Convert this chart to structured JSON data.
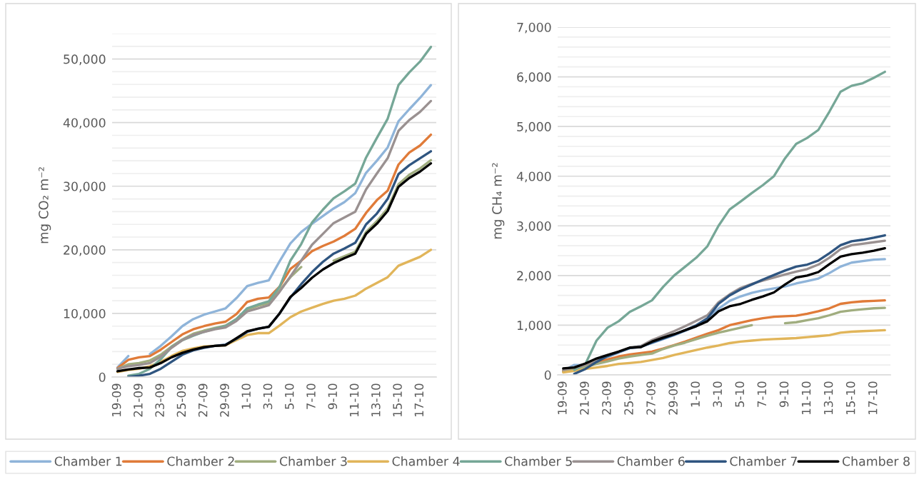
{
  "chart_data": [
    {
      "type": "line",
      "ylabel": "mg CO₂ m⁻²",
      "grid": "y",
      "legend": "bottom",
      "categories": [
        "19-09",
        null,
        "21-09",
        null,
        "23-09",
        null,
        "25-09",
        null,
        "27-09",
        null,
        "29-09",
        null,
        "1-10",
        null,
        "3-10",
        null,
        "5-10",
        null,
        "7-10",
        null,
        "9-10",
        null,
        "11-10",
        null,
        "13-10",
        null,
        "15-10",
        null,
        "17-10",
        null
      ],
      "ylim": [
        0,
        54000
      ],
      "yticks": [
        0,
        {
          "value": 2000,
          "label": null
        },
        {
          "value": 4000,
          "label": null
        },
        {
          "value": 6000,
          "label": null
        },
        {
          "value": 8000,
          "label": null
        },
        {
          "value": 10000,
          "label": "10,000"
        },
        {
          "value": 12000,
          "label": null
        },
        {
          "value": 14000,
          "label": null
        },
        {
          "value": 16000,
          "label": null
        },
        {
          "value": 18000,
          "label": null
        },
        {
          "value": 20000,
          "label": "20,000"
        },
        {
          "value": 22000,
          "label": null
        },
        {
          "value": 24000,
          "label": null
        },
        {
          "value": 26000,
          "label": null
        },
        {
          "value": 28000,
          "label": null
        },
        {
          "value": 30000,
          "label": "30,000"
        },
        {
          "value": 32000,
          "label": null
        },
        {
          "value": 34000,
          "label": null
        },
        {
          "value": 36000,
          "label": null
        },
        {
          "value": 38000,
          "label": null
        },
        {
          "value": 40000,
          "label": "40,000"
        },
        {
          "value": 42000,
          "label": null
        },
        {
          "value": 44000,
          "label": null
        },
        {
          "value": 46000,
          "label": null
        },
        {
          "value": 48000,
          "label": null
        },
        {
          "value": 50000,
          "label": "50,000"
        },
        {
          "value": 52000,
          "label": null
        },
        {
          "value": 54000,
          "label": null
        }
      ],
      "series": [
        {
          "name": "Chamber 1",
          "color": "#8fb4d9",
          "values": [
            1500,
            3300,
            null,
            3600,
            4900,
            6400,
            8000,
            9100,
            9800,
            10300,
            10800,
            12400,
            14300,
            14800,
            15200,
            18200,
            21000,
            22800,
            24100,
            25300,
            26500,
            27500,
            28900,
            32100,
            34000,
            36100,
            40200,
            42100,
            43900,
            45900
          ]
        },
        {
          "name": "Chamber 2",
          "color": "#e07b39",
          "values": [
            1400,
            2700,
            3100,
            3300,
            4300,
            5500,
            6700,
            7500,
            8000,
            8400,
            8700,
            9900,
            11800,
            12300,
            12500,
            14200,
            17000,
            18300,
            19800,
            20600,
            21300,
            22200,
            23300,
            25800,
            27800,
            29300,
            33400,
            35300,
            36400,
            38100
          ]
        },
        {
          "name": "Chamber 3",
          "color": "#a0ad7f",
          "values": [
            1300,
            2000,
            2200,
            2600,
            3500,
            4800,
            5900,
            6800,
            7300,
            7700,
            8100,
            9100,
            10600,
            11200,
            11600,
            13600,
            15700,
            17300,
            null,
            null,
            18300,
            19000,
            19700,
            22800,
            24500,
            26500,
            30300,
            31800,
            32800,
            34100
          ]
        },
        {
          "name": "Chamber 4",
          "color": "#e1b55a",
          "values": [
            800,
            1100,
            1300,
            1700,
            2400,
            3300,
            4100,
            4500,
            4800,
            4900,
            5000,
            5800,
            6600,
            6900,
            6900,
            8100,
            9400,
            10300,
            10900,
            11500,
            12000,
            12300,
            12800,
            13900,
            14800,
            15700,
            17500,
            18200,
            18900,
            20000
          ]
        },
        {
          "name": "Chamber 5",
          "color": "#76a797",
          "values": [
            null,
            200,
            500,
            1300,
            2800,
            4700,
            5800,
            6500,
            7100,
            7600,
            8000,
            9100,
            10800,
            11400,
            11900,
            14200,
            18300,
            20900,
            24300,
            26300,
            28100,
            29200,
            30400,
            34500,
            37600,
            40600,
            45900,
            47900,
            49600,
            51900
          ]
        },
        {
          "name": "Chamber 6",
          "color": "#9a9191",
          "values": [
            1300,
            1700,
            1900,
            2200,
            3200,
            4600,
            5800,
            6600,
            7100,
            7500,
            7800,
            8800,
            10300,
            10800,
            11300,
            13400,
            15800,
            18300,
            20800,
            22500,
            24200,
            25100,
            26000,
            29500,
            32000,
            34400,
            38700,
            40400,
            41700,
            43400
          ]
        },
        {
          "name": "Chamber 7",
          "color": "#2f5580",
          "values": [
            null,
            0,
            200,
            500,
            1300,
            2400,
            3500,
            4200,
            4600,
            4900,
            5100,
            6000,
            7100,
            7600,
            7900,
            10000,
            12500,
            14600,
            16500,
            18100,
            19400,
            20200,
            21100,
            24000,
            25700,
            28000,
            31900,
            33300,
            34400,
            35500
          ]
        },
        {
          "name": "Chamber 8",
          "color": "#000000",
          "values": [
            900,
            1200,
            1400,
            1500,
            2200,
            3100,
            3800,
            4300,
            4700,
            4900,
            5000,
            6100,
            7200,
            7600,
            7900,
            10000,
            12600,
            14000,
            15600,
            16900,
            17900,
            18700,
            19400,
            22500,
            24100,
            26100,
            29900,
            31300,
            32300,
            33600
          ]
        }
      ]
    },
    {
      "type": "line",
      "ylabel": "mg CH₄ m⁻²",
      "grid": "y",
      "legend": "bottom",
      "categories": [
        "19-09",
        null,
        "21-09",
        null,
        "23-09",
        null,
        "25-09",
        null,
        "27-09",
        null,
        "29-09",
        null,
        "1-10",
        null,
        "3-10",
        null,
        "5-10",
        null,
        "7-10",
        null,
        "9-10",
        null,
        "11-10",
        null,
        "13-10",
        null,
        "15-10",
        null,
        "17-10",
        null
      ],
      "ylim": [
        0,
        7000
      ],
      "yticks": [
        0,
        {
          "value": 200,
          "label": null
        },
        {
          "value": 400,
          "label": null
        },
        {
          "value": 600,
          "label": null
        },
        {
          "value": 800,
          "label": null
        },
        {
          "value": 1000,
          "label": "1,000"
        },
        {
          "value": 1200,
          "label": null
        },
        {
          "value": 1400,
          "label": null
        },
        {
          "value": 1600,
          "label": null
        },
        {
          "value": 1800,
          "label": null
        },
        {
          "value": 2000,
          "label": "2,000"
        },
        {
          "value": 2200,
          "label": null
        },
        {
          "value": 2400,
          "label": null
        },
        {
          "value": 2600,
          "label": null
        },
        {
          "value": 2800,
          "label": null
        },
        {
          "value": 3000,
          "label": "3,000"
        },
        {
          "value": 3200,
          "label": null
        },
        {
          "value": 3400,
          "label": null
        },
        {
          "value": 3600,
          "label": null
        },
        {
          "value": 3800,
          "label": null
        },
        {
          "value": 4000,
          "label": "4,000"
        },
        {
          "value": 4200,
          "label": null
        },
        {
          "value": 4400,
          "label": null
        },
        {
          "value": 4600,
          "label": null
        },
        {
          "value": 4800,
          "label": null
        },
        {
          "value": 5000,
          "label": "5,000"
        },
        {
          "value": 5200,
          "label": null
        },
        {
          "value": 5400,
          "label": null
        },
        {
          "value": 5600,
          "label": null
        },
        {
          "value": 5800,
          "label": null
        },
        {
          "value": 6000,
          "label": "6,000"
        },
        {
          "value": 6200,
          "label": null
        },
        {
          "value": 6400,
          "label": null
        },
        {
          "value": 6600,
          "label": null
        },
        {
          "value": 6800,
          "label": null
        },
        {
          "value": 7000,
          "label": "7,000"
        }
      ],
      "series": [
        {
          "name": "Chamber 1",
          "color": "#8fb4d9",
          "values": [
            80,
            200,
            200,
            280,
            360,
            450,
            540,
            580,
            640,
            720,
            800,
            890,
            980,
            1120,
            1330,
            1490,
            1580,
            1650,
            1700,
            1740,
            1780,
            1840,
            1890,
            1940,
            2050,
            2180,
            2260,
            2290,
            2320,
            2330
          ]
        },
        {
          "name": "Chamber 2",
          "color": "#e07b39",
          "values": [
            80,
            150,
            200,
            260,
            310,
            370,
            410,
            440,
            470,
            530,
            600,
            670,
            750,
            830,
            900,
            1000,
            1050,
            1100,
            1140,
            1170,
            1180,
            1190,
            1230,
            1280,
            1340,
            1430,
            1460,
            1480,
            1490,
            1500
          ]
        },
        {
          "name": "Chamber 3",
          "color": "#a0ad7f",
          "values": [
            60,
            100,
            160,
            220,
            270,
            330,
            370,
            400,
            430,
            520,
            590,
            650,
            720,
            790,
            850,
            900,
            950,
            1000,
            null,
            null,
            1040,
            1060,
            1100,
            1140,
            1200,
            1270,
            1300,
            1320,
            1340,
            1350
          ]
        },
        {
          "name": "Chamber 4",
          "color": "#e1b55a",
          "values": [
            50,
            80,
            120,
            150,
            180,
            220,
            240,
            260,
            300,
            340,
            400,
            450,
            500,
            550,
            590,
            640,
            670,
            690,
            710,
            720,
            730,
            740,
            760,
            780,
            800,
            850,
            870,
            880,
            890,
            900
          ]
        },
        {
          "name": "Chamber 5",
          "color": "#76a797",
          "values": [
            null,
            100,
            220,
            690,
            950,
            1080,
            1270,
            1380,
            1500,
            1770,
            2000,
            2180,
            2360,
            2590,
            3000,
            3330,
            3490,
            3660,
            3820,
            4000,
            4360,
            4650,
            4770,
            4930,
            5300,
            5700,
            5820,
            5870,
            5980,
            6100
          ]
        },
        {
          "name": "Chamber 6",
          "color": "#9a9191",
          "values": [
            100,
            150,
            200,
            300,
            380,
            460,
            540,
            580,
            700,
            790,
            880,
            980,
            1090,
            1200,
            1460,
            1620,
            1750,
            1830,
            1900,
            1960,
            2020,
            2080,
            2130,
            2220,
            2360,
            2530,
            2610,
            2640,
            2670,
            2700
          ]
        },
        {
          "name": "Chamber 7",
          "color": "#2f5580",
          "values": [
            null,
            20,
            120,
            260,
            380,
            460,
            540,
            560,
            650,
            730,
            810,
            900,
            1000,
            1140,
            1430,
            1600,
            1720,
            1820,
            1920,
            2010,
            2100,
            2180,
            2220,
            2300,
            2450,
            2610,
            2690,
            2720,
            2760,
            2810
          ]
        },
        {
          "name": "Chamber 8",
          "color": "#000000",
          "values": [
            130,
            150,
            230,
            330,
            400,
            470,
            550,
            560,
            670,
            750,
            820,
            900,
            980,
            1080,
            1280,
            1380,
            1430,
            1510,
            1580,
            1660,
            1820,
            1960,
            2000,
            2070,
            2230,
            2380,
            2430,
            2460,
            2500,
            2550
          ]
        }
      ]
    }
  ]
}
